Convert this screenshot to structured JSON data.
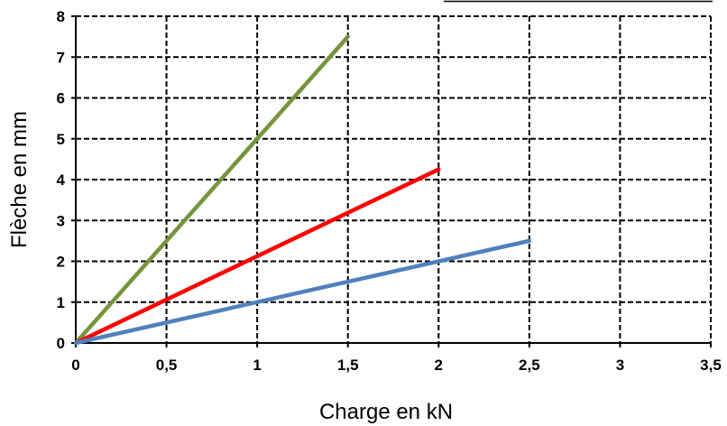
{
  "chart_data": {
    "type": "line",
    "title": "",
    "xlabel": "Charge en kN",
    "ylabel": "Flèche en mm",
    "xlim": [
      0,
      3.5
    ],
    "ylim": [
      0,
      8
    ],
    "x_ticks": [
      "0",
      "0,5",
      "1",
      "1,5",
      "2",
      "2,5",
      "3",
      "3,5"
    ],
    "y_ticks": [
      "0",
      "1",
      "2",
      "3",
      "4",
      "5",
      "6",
      "7",
      "8"
    ],
    "x_tick_values": [
      0,
      0.5,
      1,
      1.5,
      2,
      2.5,
      3,
      3.5
    ],
    "y_tick_values": [
      0,
      1,
      2,
      3,
      4,
      5,
      6,
      7,
      8
    ],
    "grid": true,
    "grid_style": "dashed",
    "series": [
      {
        "color": "#77933c",
        "x": [
          0,
          1.5
        ],
        "y": [
          0,
          7.5
        ]
      },
      {
        "color": "#ff0000",
        "x": [
          0,
          2.0
        ],
        "y": [
          0,
          4.25
        ]
      },
      {
        "color": "#4f81bd",
        "x": [
          0,
          2.5
        ],
        "y": [
          0,
          2.5
        ]
      }
    ]
  }
}
